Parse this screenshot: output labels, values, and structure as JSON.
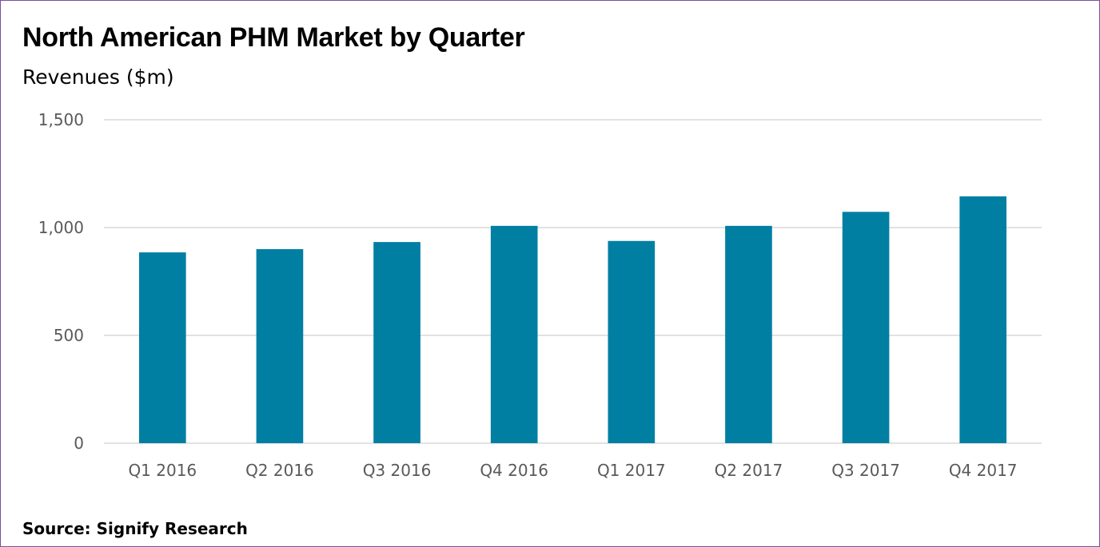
{
  "chart_data": {
    "type": "bar",
    "title": "North American PHM Market by Quarter",
    "subtitle": "Revenues ($m)",
    "source": "Source: Signify Research",
    "categories": [
      "Q1 2016",
      "Q2 2016",
      "Q3 2016",
      "Q4 2016",
      "Q1 2017",
      "Q2 2017",
      "Q3 2017",
      "Q4 2017"
    ],
    "values": [
      885,
      900,
      933,
      1008,
      938,
      1008,
      1073,
      1145
    ],
    "ylim": [
      0,
      1500
    ],
    "yticks": [
      0,
      500,
      1000,
      1500
    ],
    "ytick_labels": [
      "0",
      "500",
      "1,000",
      "1,500"
    ],
    "grid": true,
    "bar_color": "#007fa3"
  }
}
